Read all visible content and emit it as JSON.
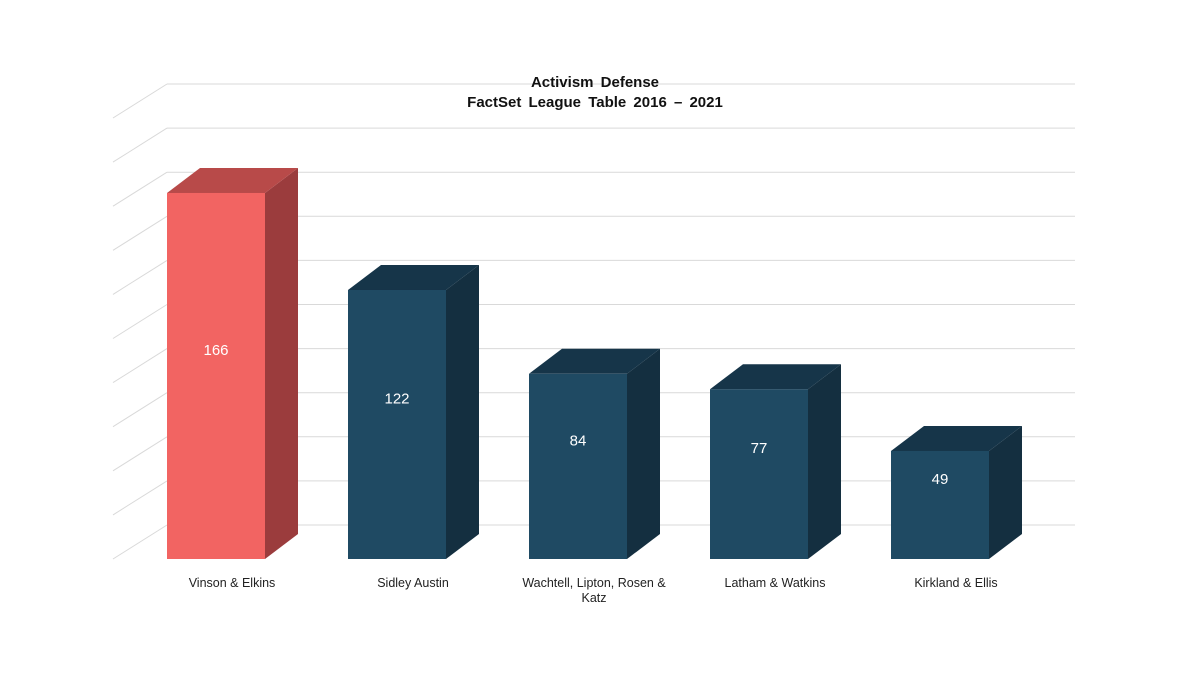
{
  "chart_data": {
    "type": "bar",
    "title_lines": [
      "Activism  Defense",
      "FactSet  League  Table  2016  –  2021"
    ],
    "categories": [
      [
        "Vinson & Elkins"
      ],
      [
        "Sidley Austin"
      ],
      [
        "Wachtell, Lipton, Rosen &",
        "Katz"
      ],
      [
        "Latham & Watkins"
      ],
      [
        "Kirkland & Ellis"
      ]
    ],
    "values": [
      166,
      122,
      84,
      77,
      49
    ],
    "data_labels": [
      "166",
      "122",
      "84",
      "77",
      "49"
    ],
    "ylim": [
      0,
      200
    ],
    "grid": true,
    "highlight_index": 0,
    "colors": {
      "highlight_front": "#f26462",
      "highlight_side": "#9b3c3d",
      "highlight_top": "#b84a49",
      "bar_front": "#1f4a63",
      "bar_side": "#142f40",
      "bar_top": "#163549",
      "grid": "#d9d9d9"
    }
  }
}
